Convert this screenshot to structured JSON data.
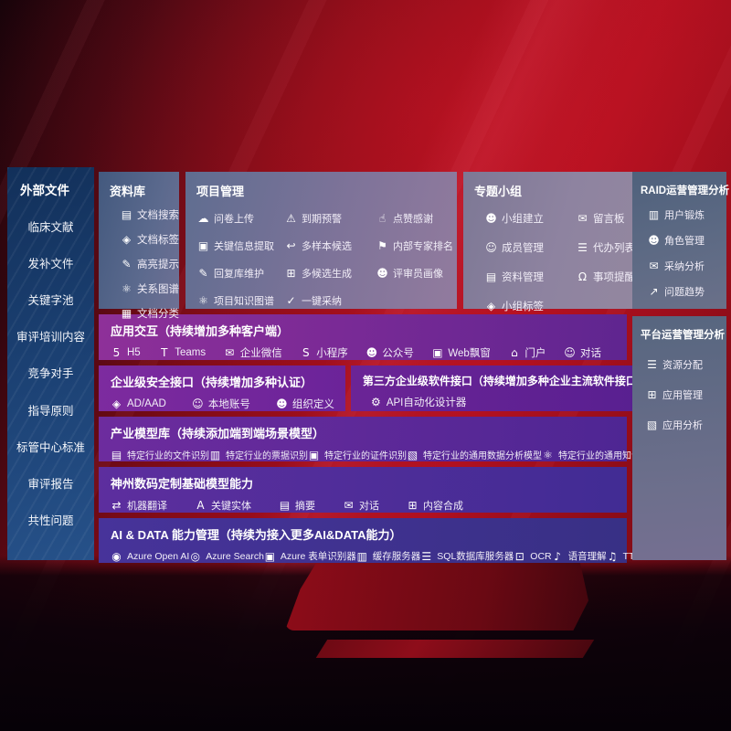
{
  "colors": {
    "accent_red": "#a80e1d",
    "panel_navy": "#1b4072",
    "panel_purple": "#6b2399",
    "panel_indigo": "#383085"
  },
  "sidebar": {
    "title": "外部文件",
    "items": [
      {
        "label": "临床文献"
      },
      {
        "label": "发补文件"
      },
      {
        "label": "关键字池"
      },
      {
        "label": "审评培训内容"
      },
      {
        "label": "竞争对手"
      },
      {
        "label": "指导原则"
      },
      {
        "label": "标管中心标准"
      },
      {
        "label": "审评报告"
      },
      {
        "label": "共性问题"
      }
    ]
  },
  "repo": {
    "title": "资料库",
    "items": [
      {
        "label": "文档搜索",
        "icon": "document-search-icon",
        "glyph": "▤"
      },
      {
        "label": "文档标签",
        "icon": "document-tag-icon",
        "glyph": "◈"
      },
      {
        "label": "高亮提示",
        "icon": "highlighter-icon",
        "glyph": "✎"
      },
      {
        "label": "关系图谱",
        "icon": "relation-graph-icon",
        "glyph": "⚛"
      },
      {
        "label": "文档分类",
        "icon": "document-classify-icon",
        "glyph": "▦"
      }
    ]
  },
  "project": {
    "title": "项目管理",
    "items": [
      {
        "label": "问卷上传",
        "icon": "cloud-upload-icon",
        "glyph": "☁"
      },
      {
        "label": "到期预警",
        "icon": "alarm-icon",
        "glyph": "⚠"
      },
      {
        "label": "点赞感谢",
        "icon": "thumbs-up-icon",
        "glyph": "☝"
      },
      {
        "label": "关键信息提取",
        "icon": "info-extract-icon",
        "glyph": "▣"
      },
      {
        "label": "多样本候选",
        "icon": "multi-sample-icon",
        "glyph": "↩"
      },
      {
        "label": "内部专家排名",
        "icon": "expert-rank-icon",
        "glyph": "⚑"
      },
      {
        "label": "回复库维护",
        "icon": "reply-library-icon",
        "glyph": "✎"
      },
      {
        "label": "多候选生成",
        "icon": "multi-candidate-icon",
        "glyph": "⊞"
      },
      {
        "label": "评审员画像",
        "icon": "reviewer-portrait-icon",
        "glyph": "☻"
      },
      {
        "label": "项目知识图谱",
        "icon": "knowledge-graph-icon",
        "glyph": "⚛"
      },
      {
        "label": "一键采纳",
        "icon": "one-click-adopt-icon",
        "glyph": "✓"
      }
    ]
  },
  "groups": {
    "title": "专题小组",
    "items": [
      {
        "label": "小组建立",
        "icon": "group-create-icon",
        "glyph": "☻"
      },
      {
        "label": "留言板",
        "icon": "message-board-icon",
        "glyph": "✉"
      },
      {
        "label": "成员管理",
        "icon": "member-manage-icon",
        "glyph": "☺"
      },
      {
        "label": "代办列表",
        "icon": "todo-list-icon",
        "glyph": "☰"
      },
      {
        "label": "资料管理",
        "icon": "material-manage-icon",
        "glyph": "▤"
      },
      {
        "label": "事项提醒",
        "icon": "bell-icon",
        "glyph": "Ω"
      },
      {
        "label": "小组标签",
        "icon": "group-tag-icon",
        "glyph": "◈"
      }
    ]
  },
  "raid": {
    "title": "RAID运营管理分析",
    "items": [
      {
        "label": "用户锻炼",
        "icon": "user-card-icon",
        "glyph": "▥"
      },
      {
        "label": "角色管理",
        "icon": "role-manage-icon",
        "glyph": "☻"
      },
      {
        "label": "采纳分析",
        "icon": "adoption-analysis-icon",
        "glyph": "✉"
      },
      {
        "label": "问题趋势",
        "icon": "trend-chart-icon",
        "glyph": "↗"
      }
    ]
  },
  "platform": {
    "title": "平台运营管理分析",
    "items": [
      {
        "label": "资源分配",
        "icon": "resource-allocation-icon",
        "glyph": "☰"
      },
      {
        "label": "应用管理",
        "icon": "app-manage-icon",
        "glyph": "⊞"
      },
      {
        "label": "应用分析",
        "icon": "app-analysis-icon",
        "glyph": "▧"
      }
    ]
  },
  "interaction": {
    "title": "应用交互（持续增加多种客户端）",
    "items": [
      {
        "label": "H5",
        "icon": "html5-icon",
        "glyph": "5"
      },
      {
        "label": "Teams",
        "icon": "teams-icon",
        "glyph": "T"
      },
      {
        "label": "企业微信",
        "icon": "wecom-icon",
        "glyph": "✉"
      },
      {
        "label": "小程序",
        "icon": "mini-program-icon",
        "glyph": "S"
      },
      {
        "label": "公众号",
        "icon": "official-account-icon",
        "glyph": "☻"
      },
      {
        "label": "Web飘窗",
        "icon": "web-window-icon",
        "glyph": "▣"
      },
      {
        "label": "门户",
        "icon": "portal-icon",
        "glyph": "⌂"
      },
      {
        "label": "对话",
        "icon": "dialog-icon",
        "glyph": "☺"
      }
    ]
  },
  "security": {
    "title": "企业级安全接口（持续增加多种认证）",
    "items": [
      {
        "label": "AD/AAD",
        "icon": "ad-aad-icon",
        "glyph": "◈"
      },
      {
        "label": "本地账号",
        "icon": "local-account-icon",
        "glyph": "☺"
      },
      {
        "label": "组织定义",
        "icon": "org-define-icon",
        "glyph": "☻"
      }
    ]
  },
  "thirdparty": {
    "title": "第三方企业级软件接口（持续增加多种企业主流软件接口）",
    "items": [
      {
        "label": "API自动化设计器",
        "icon": "api-designer-icon",
        "glyph": "⚙"
      }
    ]
  },
  "industry": {
    "title": "产业模型库（持续添加端到端场景模型）",
    "items": [
      {
        "label": "特定行业的文件识别",
        "icon": "file-recognition-icon",
        "glyph": "▤"
      },
      {
        "label": "特定行业的票据识别",
        "icon": "invoice-recognition-icon",
        "glyph": "▥"
      },
      {
        "label": "特定行业的证件识别",
        "icon": "id-recognition-icon",
        "glyph": "▣"
      },
      {
        "label": "特定行业的通用数据分析模型",
        "icon": "data-analysis-model-icon",
        "glyph": "▧"
      },
      {
        "label": "特定行业的通用知识图谱模型",
        "icon": "knowledge-graph-model-icon",
        "glyph": "⚛"
      }
    ]
  },
  "basemodels": {
    "title": "神州数码定制基础模型能力",
    "items": [
      {
        "label": "机器翻译",
        "icon": "translate-icon",
        "glyph": "⇄"
      },
      {
        "label": "关键实体",
        "icon": "key-entity-icon",
        "glyph": "A"
      },
      {
        "label": "摘要",
        "icon": "summary-icon",
        "glyph": "▤"
      },
      {
        "label": "对话",
        "icon": "chat-icon",
        "glyph": "✉"
      },
      {
        "label": "内容合成",
        "icon": "content-compose-icon",
        "glyph": "⊞"
      }
    ]
  },
  "aidata": {
    "title": "AI & DATA 能力管理（持续为接入更多AI&DATA能力）",
    "items": [
      {
        "label": "Azure Open AI",
        "icon": "azure-openai-icon",
        "glyph": "◉"
      },
      {
        "label": "Azure Search",
        "icon": "azure-search-icon",
        "glyph": "◎"
      },
      {
        "label": "Azure 表单识别器",
        "icon": "form-recognizer-icon",
        "glyph": "▣"
      },
      {
        "label": "缓存服务器",
        "icon": "cache-server-icon",
        "glyph": "▥"
      },
      {
        "label": "SQL数据库服务器",
        "icon": "sql-server-icon",
        "glyph": "☰"
      },
      {
        "label": "OCR",
        "icon": "ocr-icon",
        "glyph": "⊡"
      },
      {
        "label": "语音理解",
        "icon": "speech-understanding-icon",
        "glyph": "♪"
      },
      {
        "label": "TTS",
        "icon": "tts-icon",
        "glyph": "♫"
      }
    ]
  }
}
